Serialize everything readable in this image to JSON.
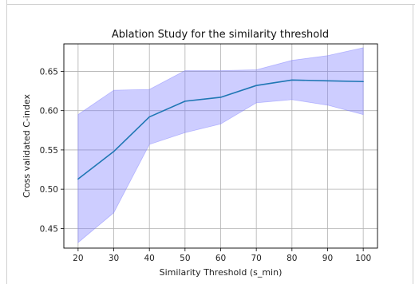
{
  "chart_data": {
    "type": "line",
    "title": "Ablation Study for the similarity threshold",
    "xlabel": "Similarity Threshold (s_min)",
    "ylabel": "Cross validated C-index",
    "x": [
      20,
      30,
      40,
      50,
      60,
      70,
      80,
      90,
      100
    ],
    "xticks": [
      "20",
      "30",
      "40",
      "50",
      "60",
      "70",
      "80",
      "90",
      "100"
    ],
    "yticks": [
      "0.45",
      "0.50",
      "0.55",
      "0.60",
      "0.65"
    ],
    "ytick_values": [
      0.45,
      0.5,
      0.55,
      0.6,
      0.65
    ],
    "xlim": [
      16,
      104
    ],
    "ylim": [
      0.425,
      0.685
    ],
    "grid": true,
    "series": [
      {
        "values": [
          0.513,
          0.548,
          0.592,
          0.612,
          0.617,
          0.632,
          0.639,
          0.638,
          0.637
        ],
        "lower": [
          0.432,
          0.47,
          0.557,
          0.572,
          0.583,
          0.61,
          0.614,
          0.607,
          0.595
        ],
        "upper": [
          0.595,
          0.626,
          0.627,
          0.651,
          0.651,
          0.652,
          0.664,
          0.67,
          0.68
        ],
        "color": "#1f77b4",
        "band_color": "#7b7bff"
      }
    ]
  }
}
